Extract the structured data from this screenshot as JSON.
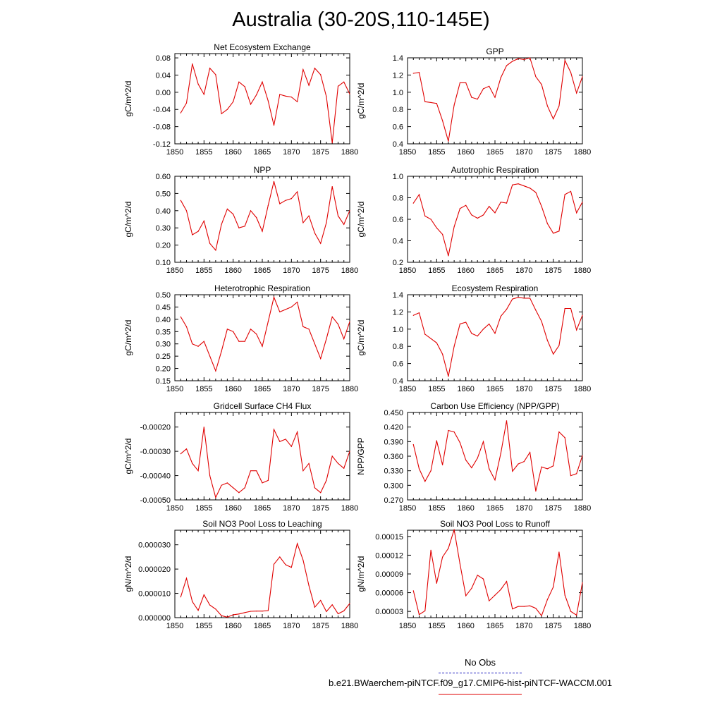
{
  "title": "Australia (30-20S,110-145E)",
  "legend": {
    "obs_label": "No Obs",
    "case_label": "b.e21.BWaerchem-piNTCF.f09_g17.CMIP6-hist-piNTCF-WACCM.001",
    "colors": {
      "obs": "#2020c0",
      "case": "#e00000"
    }
  },
  "chart_data": [
    {
      "type": "line",
      "title": "Net Ecosystem Exchange",
      "ylabel": "gC/m^2/d",
      "xlim": [
        1850,
        1880
      ],
      "x_ticks": [
        "1850",
        "1855",
        "1860",
        "1865",
        "1870",
        "1875",
        "1880"
      ],
      "ylim": [
        -0.12,
        0.09
      ],
      "y_ticks": [
        "-0.12",
        "-0.08",
        "-0.04",
        "0.00",
        "0.04",
        "0.08"
      ],
      "y_tick_values": [
        -0.12,
        -0.08,
        -0.04,
        0.0,
        0.04,
        0.08
      ],
      "color": "#e00000",
      "x": [
        1851,
        1852,
        1853,
        1854,
        1855,
        1856,
        1857,
        1858,
        1859,
        1860,
        1861,
        1862,
        1863,
        1864,
        1865,
        1866,
        1867,
        1868,
        1869,
        1870,
        1871,
        1872,
        1873,
        1874,
        1875,
        1876,
        1877,
        1878,
        1879,
        1880
      ],
      "values": [
        -0.048,
        -0.025,
        0.066,
        0.019,
        -0.005,
        0.056,
        0.041,
        -0.05,
        -0.04,
        -0.022,
        0.024,
        0.013,
        -0.028,
        -0.006,
        0.024,
        -0.02,
        -0.077,
        -0.005,
        -0.009,
        -0.011,
        -0.022,
        0.053,
        0.016,
        0.056,
        0.041,
        -0.01,
        -0.118,
        0.014,
        0.024,
        -0.004
      ]
    },
    {
      "type": "line",
      "title": "GPP",
      "ylabel": "gC/m^2/d",
      "xlim": [
        1850,
        1880
      ],
      "x_ticks": [
        "1850",
        "1855",
        "1860",
        "1865",
        "1870",
        "1875",
        "1880"
      ],
      "ylim": [
        0.4,
        1.4
      ],
      "y_ticks": [
        "0.4",
        "0.6",
        "0.8",
        "1.0",
        "1.2",
        "1.4"
      ],
      "y_tick_values": [
        0.4,
        0.6,
        0.8,
        1.0,
        1.2,
        1.4
      ],
      "color": "#e00000",
      "x": [
        1851,
        1852,
        1853,
        1854,
        1855,
        1856,
        1857,
        1858,
        1859,
        1860,
        1861,
        1862,
        1863,
        1864,
        1865,
        1866,
        1867,
        1868,
        1869,
        1870,
        1871,
        1872,
        1873,
        1874,
        1875,
        1876,
        1877,
        1878,
        1879,
        1880
      ],
      "values": [
        1.22,
        1.23,
        0.89,
        0.88,
        0.87,
        0.67,
        0.43,
        0.85,
        1.11,
        1.11,
        0.94,
        0.92,
        1.04,
        1.07,
        0.94,
        1.17,
        1.31,
        1.36,
        1.39,
        1.38,
        1.4,
        1.18,
        1.09,
        0.84,
        0.69,
        0.84,
        1.37,
        1.23,
        0.99,
        1.18
      ]
    },
    {
      "type": "line",
      "title": "NPP",
      "ylabel": "gC/m^2/d",
      "xlim": [
        1850,
        1880
      ],
      "x_ticks": [
        "1850",
        "1855",
        "1860",
        "1865",
        "1870",
        "1875",
        "1880"
      ],
      "ylim": [
        0.1,
        0.6
      ],
      "y_ticks": [
        "0.10",
        "0.20",
        "0.30",
        "0.40",
        "0.50",
        "0.60"
      ],
      "y_tick_values": [
        0.1,
        0.2,
        0.3,
        0.4,
        0.5,
        0.6
      ],
      "color": "#e00000",
      "x": [
        1851,
        1852,
        1853,
        1854,
        1855,
        1856,
        1857,
        1858,
        1859,
        1860,
        1861,
        1862,
        1863,
        1864,
        1865,
        1866,
        1867,
        1868,
        1869,
        1870,
        1871,
        1872,
        1873,
        1874,
        1875,
        1876,
        1877,
        1878,
        1879,
        1880
      ],
      "values": [
        0.46,
        0.4,
        0.26,
        0.28,
        0.34,
        0.21,
        0.17,
        0.32,
        0.41,
        0.38,
        0.3,
        0.31,
        0.4,
        0.36,
        0.28,
        0.43,
        0.57,
        0.44,
        0.46,
        0.47,
        0.51,
        0.33,
        0.37,
        0.27,
        0.21,
        0.33,
        0.54,
        0.37,
        0.32,
        0.4
      ]
    },
    {
      "type": "line",
      "title": "Autotrophic Respiration",
      "ylabel": "gC/m^2/d",
      "xlim": [
        1850,
        1880
      ],
      "x_ticks": [
        "1850",
        "1855",
        "1860",
        "1865",
        "1870",
        "1875",
        "1880"
      ],
      "ylim": [
        0.2,
        1.0
      ],
      "y_ticks": [
        "0.2",
        "0.4",
        "0.6",
        "0.8",
        "1.0"
      ],
      "y_tick_values": [
        0.2,
        0.4,
        0.6,
        0.8,
        1.0
      ],
      "color": "#e00000",
      "x": [
        1851,
        1852,
        1853,
        1854,
        1855,
        1856,
        1857,
        1858,
        1859,
        1860,
        1861,
        1862,
        1863,
        1864,
        1865,
        1866,
        1867,
        1868,
        1869,
        1870,
        1871,
        1872,
        1873,
        1874,
        1875,
        1876,
        1877,
        1878,
        1879,
        1880
      ],
      "values": [
        0.75,
        0.83,
        0.63,
        0.6,
        0.52,
        0.46,
        0.26,
        0.53,
        0.7,
        0.73,
        0.64,
        0.61,
        0.64,
        0.72,
        0.66,
        0.76,
        0.75,
        0.92,
        0.93,
        0.91,
        0.89,
        0.85,
        0.72,
        0.56,
        0.47,
        0.49,
        0.83,
        0.86,
        0.66,
        0.76
      ]
    },
    {
      "type": "line",
      "title": "Heterotrophic Respiration",
      "ylabel": "gC/m^2/d",
      "xlim": [
        1850,
        1880
      ],
      "x_ticks": [
        "1850",
        "1855",
        "1860",
        "1865",
        "1870",
        "1875",
        "1880"
      ],
      "ylim": [
        0.15,
        0.5
      ],
      "y_ticks": [
        "0.15",
        "0.20",
        "0.25",
        "0.30",
        "0.35",
        "0.40",
        "0.45",
        "0.50"
      ],
      "y_tick_values": [
        0.15,
        0.2,
        0.25,
        0.3,
        0.35,
        0.4,
        0.45,
        0.5
      ],
      "color": "#e00000",
      "x": [
        1851,
        1852,
        1853,
        1854,
        1855,
        1856,
        1857,
        1858,
        1859,
        1860,
        1861,
        1862,
        1863,
        1864,
        1865,
        1866,
        1867,
        1868,
        1869,
        1870,
        1871,
        1872,
        1873,
        1874,
        1875,
        1876,
        1877,
        1878,
        1879,
        1880
      ],
      "values": [
        0.41,
        0.37,
        0.3,
        0.29,
        0.31,
        0.25,
        0.19,
        0.27,
        0.36,
        0.35,
        0.31,
        0.31,
        0.36,
        0.34,
        0.29,
        0.39,
        0.49,
        0.43,
        0.44,
        0.45,
        0.47,
        0.37,
        0.36,
        0.3,
        0.24,
        0.32,
        0.41,
        0.38,
        0.32,
        0.39
      ]
    },
    {
      "type": "line",
      "title": "Ecosystem Respiration",
      "ylabel": "gC/m^2/d",
      "xlim": [
        1850,
        1880
      ],
      "x_ticks": [
        "1850",
        "1855",
        "1860",
        "1865",
        "1870",
        "1875",
        "1880"
      ],
      "ylim": [
        0.4,
        1.4
      ],
      "y_ticks": [
        "0.4",
        "0.6",
        "0.8",
        "1.0",
        "1.2",
        "1.4"
      ],
      "y_tick_values": [
        0.4,
        0.6,
        0.8,
        1.0,
        1.2,
        1.4
      ],
      "color": "#e00000",
      "x": [
        1851,
        1852,
        1853,
        1854,
        1855,
        1856,
        1857,
        1858,
        1859,
        1860,
        1861,
        1862,
        1863,
        1864,
        1865,
        1866,
        1867,
        1868,
        1869,
        1870,
        1871,
        1872,
        1873,
        1874,
        1875,
        1876,
        1877,
        1878,
        1879,
        1880
      ],
      "values": [
        1.16,
        1.19,
        0.94,
        0.89,
        0.84,
        0.71,
        0.45,
        0.8,
        1.06,
        1.08,
        0.95,
        0.92,
        1.0,
        1.06,
        0.95,
        1.15,
        1.23,
        1.35,
        1.37,
        1.36,
        1.36,
        1.22,
        1.09,
        0.87,
        0.71,
        0.81,
        1.24,
        1.24,
        0.99,
        1.16
      ]
    },
    {
      "type": "line",
      "title": "Gridcell Surface CH4 Flux",
      "ylabel": "gC/m^2/d",
      "xlim": [
        1850,
        1880
      ],
      "x_ticks": [
        "1850",
        "1855",
        "1860",
        "1865",
        "1870",
        "1875",
        "1880"
      ],
      "ylim": [
        -0.0005,
        -0.00014
      ],
      "y_ticks": [
        "-0.00050",
        "-0.00040",
        "-0.00030",
        "-0.00020"
      ],
      "y_tick_values": [
        -0.0005,
        -0.0004,
        -0.0003,
        -0.0002
      ],
      "color": "#e00000",
      "x": [
        1851,
        1852,
        1853,
        1854,
        1855,
        1856,
        1857,
        1858,
        1859,
        1860,
        1861,
        1862,
        1863,
        1864,
        1865,
        1866,
        1867,
        1868,
        1869,
        1870,
        1871,
        1872,
        1873,
        1874,
        1875,
        1876,
        1877,
        1878,
        1879,
        1880
      ],
      "values": [
        -0.00031,
        -0.00029,
        -0.00035,
        -0.00038,
        -0.0002,
        -0.0004,
        -0.00049,
        -0.00044,
        -0.00043,
        -0.00045,
        -0.00047,
        -0.00045,
        -0.00038,
        -0.00038,
        -0.00043,
        -0.00042,
        -0.00021,
        -0.00026,
        -0.00025,
        -0.00028,
        -0.00022,
        -0.00038,
        -0.00035,
        -0.00045,
        -0.00047,
        -0.00042,
        -0.00032,
        -0.00035,
        -0.00037,
        -0.0003
      ]
    },
    {
      "type": "line",
      "title": "Carbon Use Efficiency (NPP/GPP)",
      "ylabel": "NPP/GPP",
      "xlim": [
        1850,
        1880
      ],
      "x_ticks": [
        "1850",
        "1855",
        "1860",
        "1865",
        "1870",
        "1875",
        "1880"
      ],
      "ylim": [
        0.27,
        0.45
      ],
      "y_ticks": [
        "0.270",
        "0.300",
        "0.330",
        "0.360",
        "0.390",
        "0.420",
        "0.450"
      ],
      "y_tick_values": [
        0.27,
        0.3,
        0.33,
        0.36,
        0.39,
        0.42,
        0.45
      ],
      "color": "#e00000",
      "x": [
        1851,
        1852,
        1853,
        1854,
        1855,
        1856,
        1857,
        1858,
        1859,
        1860,
        1861,
        1862,
        1863,
        1864,
        1865,
        1866,
        1867,
        1868,
        1869,
        1870,
        1871,
        1872,
        1873,
        1874,
        1875,
        1876,
        1877,
        1878,
        1879,
        1880
      ],
      "values": [
        0.384,
        0.334,
        0.308,
        0.33,
        0.392,
        0.342,
        0.413,
        0.41,
        0.388,
        0.352,
        0.336,
        0.356,
        0.39,
        0.334,
        0.311,
        0.366,
        0.433,
        0.329,
        0.344,
        0.349,
        0.368,
        0.288,
        0.338,
        0.334,
        0.34,
        0.41,
        0.398,
        0.32,
        0.324,
        0.361
      ]
    },
    {
      "type": "line",
      "title": "Soil NO3 Pool Loss to Leaching",
      "ylabel": "gN/m^2/d",
      "xlim": [
        1850,
        1880
      ],
      "x_ticks": [
        "1850",
        "1855",
        "1860",
        "1865",
        "1870",
        "1875",
        "1880"
      ],
      "ylim": [
        0.0,
        3.6e-05
      ],
      "y_ticks": [
        "0.000000",
        "0.000010",
        "0.000020",
        "0.000030"
      ],
      "y_tick_values": [
        0.0,
        1e-05,
        2e-05,
        3e-05
      ],
      "color": "#e00000",
      "x": [
        1851,
        1852,
        1853,
        1854,
        1855,
        1856,
        1857,
        1858,
        1859,
        1860,
        1861,
        1862,
        1863,
        1864,
        1865,
        1866,
        1867,
        1868,
        1869,
        1870,
        1871,
        1872,
        1873,
        1874,
        1875,
        1876,
        1877,
        1878,
        1879,
        1880
      ],
      "values": [
        8.5e-06,
        1.62e-05,
        6.6e-06,
        3e-06,
        9.4e-06,
        5.2e-06,
        3.5e-06,
        8e-07,
        2e-07,
        1.2e-06,
        1.5e-06,
        2.1e-06,
        2.6e-06,
        2.7e-06,
        2.7e-06,
        2.9e-06,
        2.2e-05,
        2.5e-05,
        2.18e-05,
        2.07e-05,
        3.05e-05,
        2.37e-05,
        1.32e-05,
        4.3e-06,
        7.1e-06,
        2.5e-06,
        5.3e-06,
        1.6e-06,
        2.8e-06,
        5.8e-06
      ]
    },
    {
      "type": "line",
      "title": "Soil NO3 Pool Loss to Runoff",
      "ylabel": "gN/m^2/d",
      "xlim": [
        1850,
        1880
      ],
      "x_ticks": [
        "1850",
        "1855",
        "1860",
        "1865",
        "1870",
        "1875",
        "1880"
      ],
      "ylim": [
        2e-05,
        0.00016
      ],
      "y_ticks": [
        "0.00003",
        "0.00006",
        "0.00009",
        "0.00012",
        "0.00015"
      ],
      "y_tick_values": [
        3e-05,
        6e-05,
        9e-05,
        0.00012,
        0.00015
      ],
      "color": "#e00000",
      "x": [
        1851,
        1852,
        1853,
        1854,
        1855,
        1856,
        1857,
        1858,
        1859,
        1860,
        1861,
        1862,
        1863,
        1864,
        1865,
        1866,
        1867,
        1868,
        1869,
        1870,
        1871,
        1872,
        1873,
        1874,
        1875,
        1876,
        1877,
        1878,
        1879,
        1880
      ],
      "values": [
        6.3e-05,
        2.5e-05,
        3.1e-05,
        0.000128,
        7.5e-05,
        0.000117,
        0.000131,
        0.000161,
        0.000106,
        5.5e-05,
        6.7e-05,
        8.8e-05,
        8.2e-05,
        4.7e-05,
        5.6e-05,
        6.5e-05,
        7.8e-05,
        3.4e-05,
        3.8e-05,
        3.8e-05,
        3.9e-05,
        3.5e-05,
        2.3e-05,
        4.9e-05,
        6.9e-05,
        0.000125,
        5.6e-05,
        3e-05,
        2.4e-05,
        7.6e-05
      ]
    }
  ]
}
